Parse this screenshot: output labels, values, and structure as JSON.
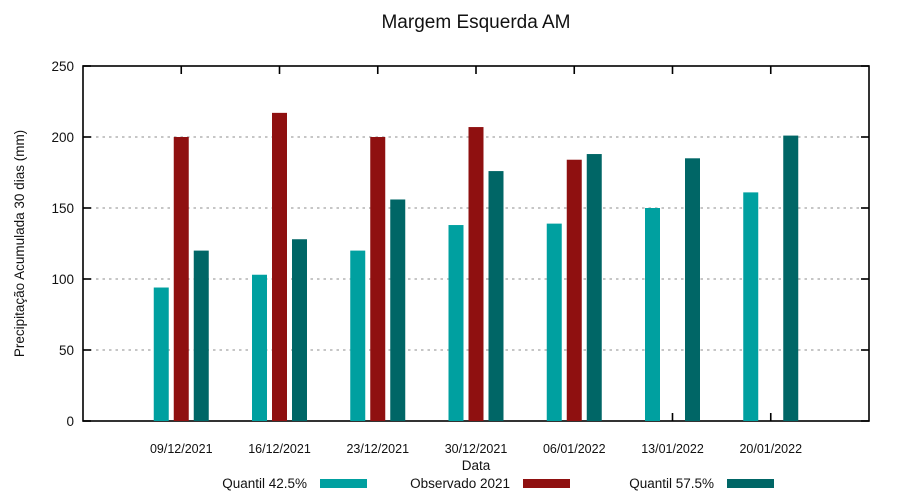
{
  "title": "Margem Esquerda AM",
  "chart_data": {
    "type": "bar",
    "title": "Margem Esquerda AM",
    "xlabel": "Data",
    "ylabel": "Precipitação Acumulada 30 dias (mm)",
    "categories": [
      "09/12/2021",
      "16/12/2021",
      "23/12/2021",
      "30/12/2021",
      "06/01/2022",
      "13/01/2022",
      "20/01/2022"
    ],
    "series": [
      {
        "name": "Quantil 42.5%",
        "color": "#00A0A0",
        "values": [
          94,
          103,
          120,
          138,
          139,
          150,
          161
        ]
      },
      {
        "name": "Observado 2021",
        "color": "#8F1010",
        "values": [
          200,
          217,
          200,
          207,
          184,
          null,
          null
        ]
      },
      {
        "name": "Quantil 57.5%",
        "color": "#006666",
        "values": [
          120,
          128,
          156,
          176,
          188,
          185,
          201
        ]
      }
    ],
    "ylim": [
      0,
      250
    ],
    "yticks": [
      0,
      50,
      100,
      150,
      200,
      250
    ],
    "grid": "horizontal-dotted",
    "gridline_values": [
      50,
      100,
      150,
      200
    ],
    "legend_position": "bottom-center",
    "border_color": "#000000",
    "grid_color": "#b3b3b3",
    "text_color": "#111111"
  }
}
